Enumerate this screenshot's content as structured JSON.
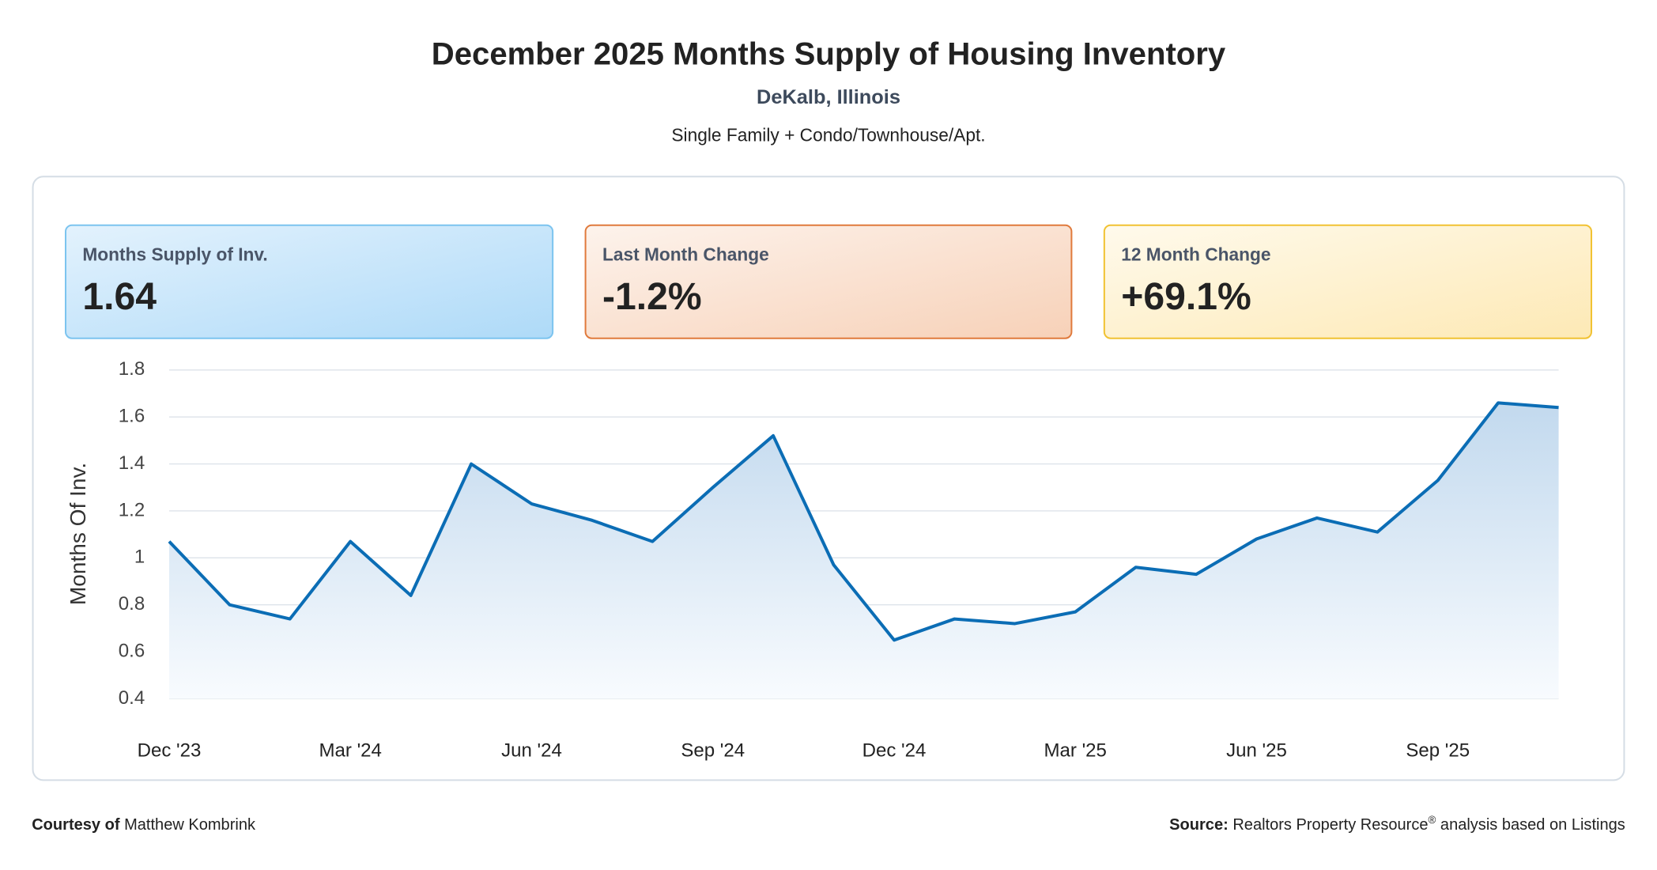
{
  "header": {
    "title": "December 2025 Months Supply of Housing Inventory",
    "subtitle": "DeKalb, Illinois",
    "description": "Single Family + Condo/Townhouse/Apt."
  },
  "kpis": [
    {
      "label": "Months Supply of Inv.",
      "value": "1.64"
    },
    {
      "label": "Last Month Change",
      "value": "-1.2%"
    },
    {
      "label": "12 Month Change",
      "value": "+69.1%"
    }
  ],
  "chart_data": {
    "type": "line",
    "y_label": "Months Of Inv.",
    "categories": [
      "Dec '23",
      null,
      null,
      "Mar '24",
      null,
      null,
      "Jun '24",
      null,
      null,
      "Sep '24",
      null,
      null,
      "Dec '24",
      null,
      null,
      "Mar '25",
      null,
      null,
      "Jun '25",
      null,
      null,
      "Sep '25",
      null,
      null
    ],
    "values": [
      1.07,
      0.8,
      0.74,
      1.07,
      0.84,
      1.4,
      1.23,
      1.16,
      1.07,
      1.3,
      1.52,
      0.97,
      0.65,
      0.74,
      0.72,
      0.77,
      0.96,
      0.93,
      1.08,
      1.17,
      1.11,
      1.33,
      1.66,
      1.64
    ],
    "color": "#0b6db5",
    "ylim": [
      0.4,
      1.8
    ],
    "yticks": [
      0.4,
      0.6,
      0.8,
      1,
      1.2,
      1.4,
      1.6,
      1.8
    ],
    "grid": true
  },
  "footer": {
    "courtesy_label": "Courtesy of",
    "courtesy_name": "Matthew Kombrink",
    "source_label": "Source:",
    "source_text": "Realtors Property Resource",
    "source_mark": "®",
    "source_rest": "analysis based on Listings"
  }
}
